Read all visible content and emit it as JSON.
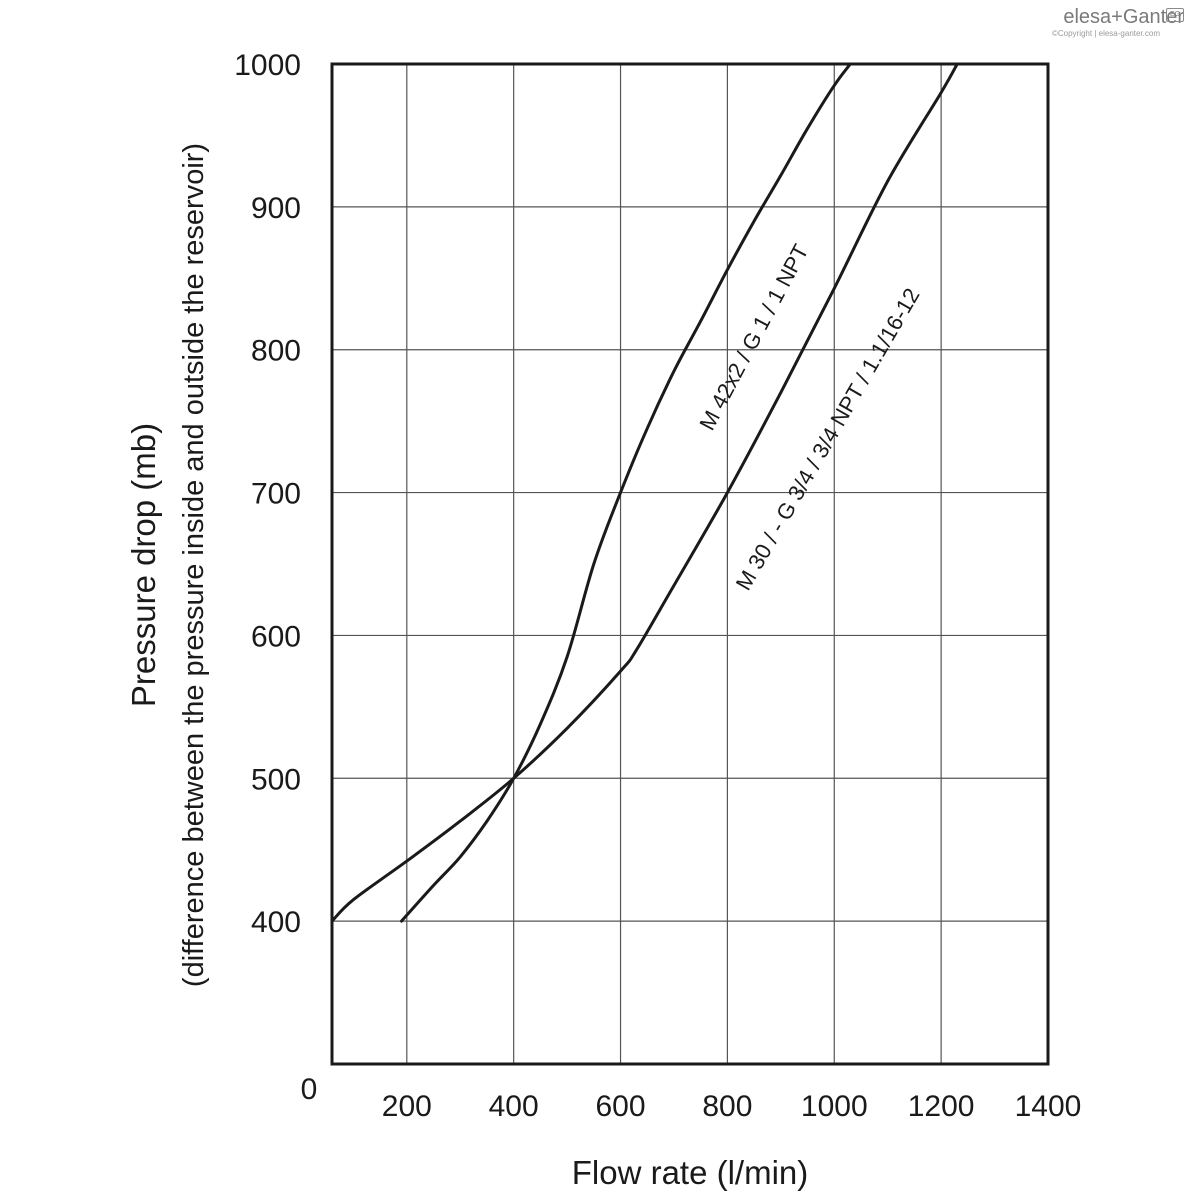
{
  "logo": {
    "brand": "elesa+Ganter",
    "copyright": "©Copyright | elesa-ganter.com",
    "mark": "EG"
  },
  "chart_data": {
    "type": "line",
    "title": "",
    "xlabel": "Flow rate (l/min)",
    "ylabel": "Pressure drop (mb)",
    "ylabel_sub": "(difference between the pressure inside and outside the reservoir)",
    "xlim": [
      60,
      1400
    ],
    "ylim": [
      300,
      1000
    ],
    "x_ticks": [
      200,
      400,
      600,
      800,
      1000,
      1200,
      1400
    ],
    "y_ticks": [
      400,
      500,
      600,
      700,
      800,
      900,
      1000
    ],
    "origin_label": "0",
    "grid": true,
    "series": [
      {
        "name": "M 42x2 / G 1 / 1 NPT",
        "color": "#1a1a1a",
        "points": [
          [
            190,
            400
          ],
          [
            250,
            425
          ],
          [
            300,
            445
          ],
          [
            350,
            470
          ],
          [
            400,
            500
          ],
          [
            450,
            538
          ],
          [
            500,
            585
          ],
          [
            550,
            650
          ],
          [
            600,
            700
          ],
          [
            650,
            745
          ],
          [
            700,
            785
          ],
          [
            750,
            820
          ],
          [
            800,
            856
          ],
          [
            850,
            890
          ],
          [
            900,
            922
          ],
          [
            950,
            955
          ],
          [
            1000,
            985
          ],
          [
            1030,
            1000
          ]
        ]
      },
      {
        "name": "M 30 / - G 3/4 / 3/4 NPT / 1.1/16-12",
        "color": "#1a1a1a",
        "points": [
          [
            60,
            400
          ],
          [
            100,
            415
          ],
          [
            200,
            442
          ],
          [
            300,
            470
          ],
          [
            400,
            500
          ],
          [
            500,
            535
          ],
          [
            600,
            575
          ],
          [
            630,
            590
          ],
          [
            700,
            635
          ],
          [
            800,
            700
          ],
          [
            900,
            770
          ],
          [
            1000,
            843
          ],
          [
            1100,
            918
          ],
          [
            1200,
            980
          ],
          [
            1230,
            1000
          ]
        ]
      }
    ]
  }
}
